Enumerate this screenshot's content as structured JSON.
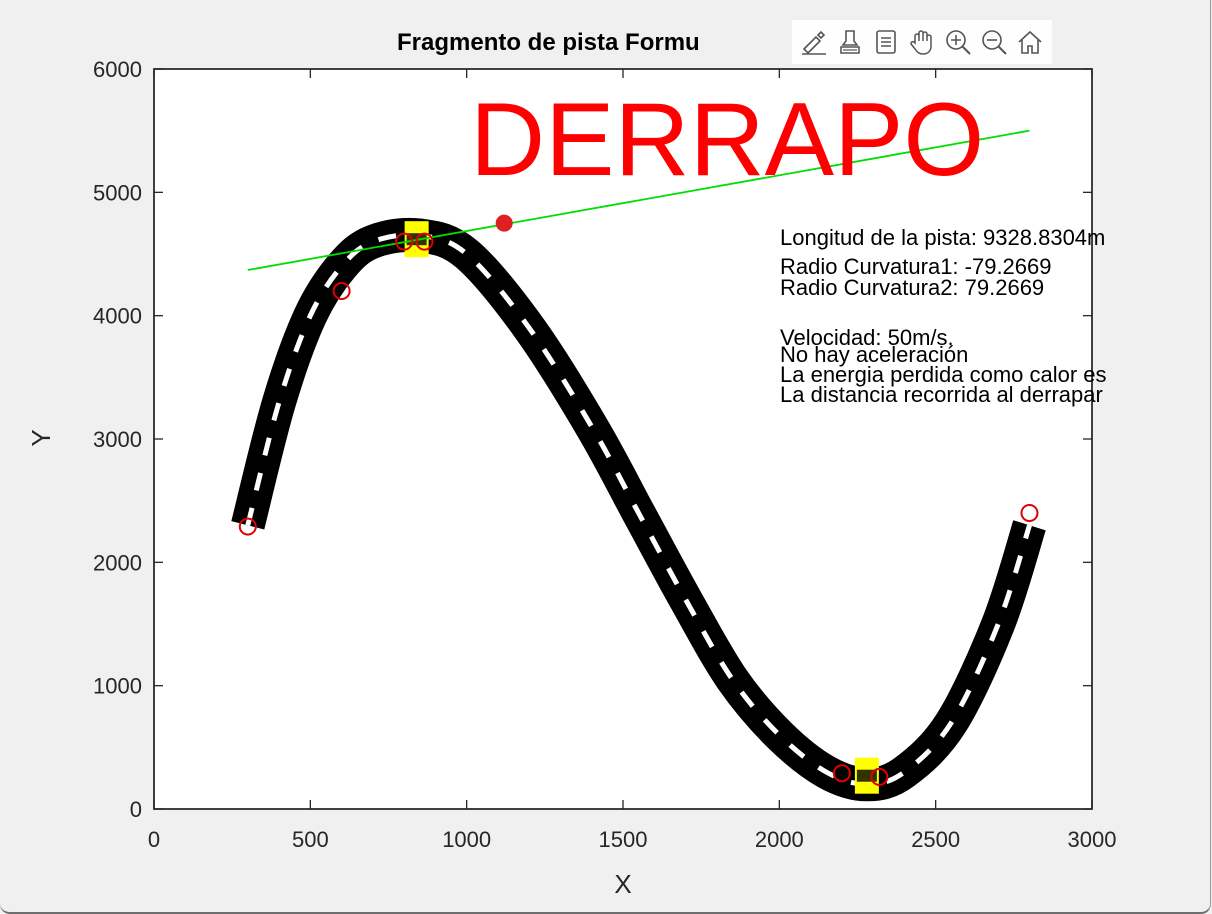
{
  "window": {
    "background": "#f0f0f0"
  },
  "toolbar": {
    "buttons": [
      {
        "name": "brush-edit-icon"
      },
      {
        "name": "data-tips-icon"
      },
      {
        "name": "rotate-icon"
      },
      {
        "name": "pan-hand-icon"
      },
      {
        "name": "zoom-in-icon"
      },
      {
        "name": "zoom-out-icon"
      },
      {
        "name": "home-restore-icon"
      }
    ]
  },
  "chart_data": {
    "type": "line",
    "title": "Fragmento de pista Formu",
    "xlabel": "X",
    "ylabel": "Y",
    "xlim": [
      0,
      3000
    ],
    "ylim": [
      0,
      6000
    ],
    "xticks": [
      "0",
      "500",
      "1000",
      "1500",
      "2000",
      "2500",
      "3000"
    ],
    "yticks": [
      "0",
      "1000",
      "2000",
      "3000",
      "4000",
      "5000",
      "6000"
    ],
    "grid": false,
    "track": {
      "description_points": [
        [
          300,
          2300
        ],
        [
          400,
          3300
        ],
        [
          500,
          4000
        ],
        [
          600,
          4400
        ],
        [
          700,
          4600
        ],
        [
          850,
          4650
        ],
        [
          1000,
          4500
        ],
        [
          1200,
          3900
        ],
        [
          1400,
          3100
        ],
        [
          1550,
          2400
        ],
        [
          1700,
          1700
        ],
        [
          1850,
          1050
        ],
        [
          2000,
          600
        ],
        [
          2150,
          300
        ],
        [
          2280,
          200
        ],
        [
          2400,
          300
        ],
        [
          2550,
          700
        ],
        [
          2700,
          1500
        ],
        [
          2800,
          2300
        ]
      ],
      "color": "#000000",
      "center_dash_color": "#ffffff"
    },
    "red_circles": [
      [
        300,
        2290
      ],
      [
        600,
        4200
      ],
      [
        800,
        4600
      ],
      [
        865,
        4600
      ],
      [
        2200,
        290
      ],
      [
        2320,
        260
      ],
      [
        2800,
        2400
      ]
    ],
    "filled_marker": [
      1120,
      4750
    ],
    "yellow_markers": [
      [
        840,
        4620
      ],
      [
        2280,
        270
      ]
    ],
    "tangent_line": {
      "color": "#00dd00",
      "points": [
        [
          300,
          4370
        ],
        [
          2800,
          5500
        ]
      ]
    },
    "annotations": {
      "headline": "DERRAPO",
      "headline_color": "#ff0000",
      "lines": [
        "Longitud de la pista: 9328.8304m",
        "Radio Curvatura1: -79.2669",
        "Radio Curvatura2: 79.2669",
        "Velocidad: 50m/s.",
        "No hay aceleración",
        "La energia perdida como calor es",
        "La distancia recorrida al derrapar"
      ]
    }
  }
}
